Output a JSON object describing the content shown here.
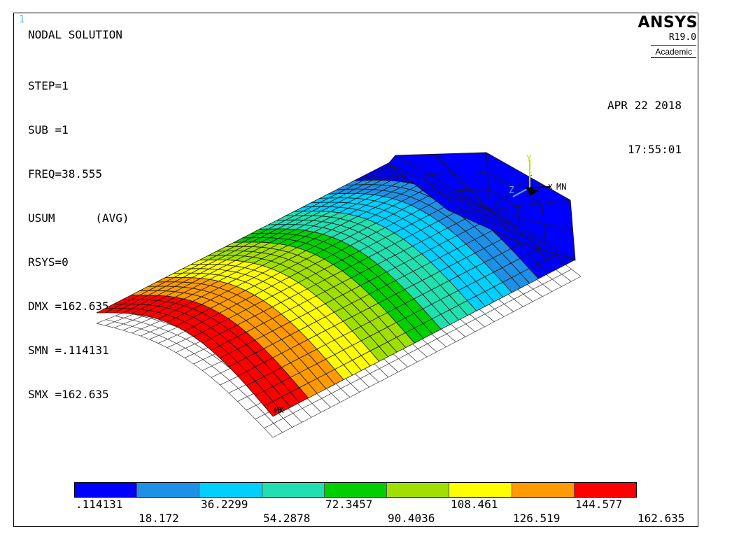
{
  "window": {
    "number": "1"
  },
  "header": {
    "title": "NODAL SOLUTION",
    "info_lines": [
      "STEP=1",
      "SUB =1",
      "FREQ=38.555",
      "USUM      (AVG)",
      "RSYS=0",
      "DMX =162.635",
      "SMN =.114131",
      "SMX =162.635"
    ]
  },
  "logo": {
    "name": "ANSYS",
    "version": "R19.0",
    "license": "Academic"
  },
  "datetime": {
    "date": "APR 22 2018",
    "time": "17:55:01"
  },
  "markers": {
    "min": "MN",
    "max": "MX"
  },
  "triad": {
    "y": "Y",
    "z": "Z",
    "x": "X"
  },
  "legend": {
    "colors": [
      "#0000ff",
      "#1e90e6",
      "#00d0ff",
      "#20e0b0",
      "#00d000",
      "#a0e000",
      "#ffff00",
      "#ff9a00",
      "#ff0000"
    ],
    "labels_top": [
      ".114131",
      "36.2299",
      "72.3457",
      "108.461",
      "144.577"
    ],
    "labels_bottom": [
      "18.172",
      "54.2878",
      "90.4036",
      "126.519",
      "162.635"
    ]
  }
}
